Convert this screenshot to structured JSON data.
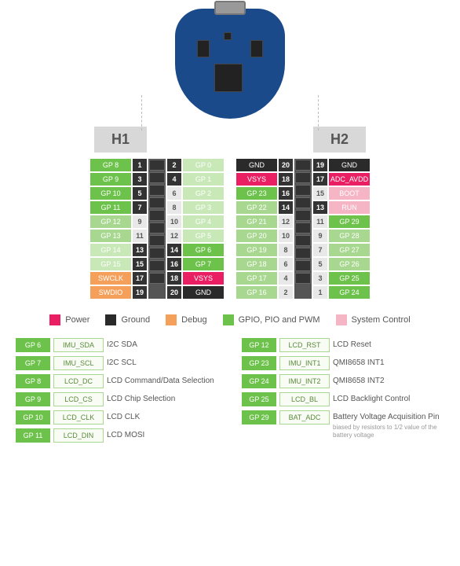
{
  "colors": {
    "gpio": "#6cc24a",
    "gpio_light": "#a8d890",
    "gpio_lighter": "#c8e8b8",
    "power": "#e91e63",
    "ground": "#2a2a2a",
    "debug": "#f5a05a",
    "system": "#f5b5c5",
    "num_bg": "#e8e8e8",
    "num_dark": "#333333"
  },
  "headers": {
    "h1": "H1",
    "h2": "H2"
  },
  "h1_left": [
    {
      "label": "GP 8",
      "color": "#6cc24a",
      "num": "1",
      "dark": true
    },
    {
      "label": "GP 9",
      "color": "#6cc24a",
      "num": "3",
      "dark": true
    },
    {
      "label": "GP 10",
      "color": "#6cc24a",
      "num": "5",
      "dark": true
    },
    {
      "label": "GP 11",
      "color": "#6cc24a",
      "num": "7",
      "dark": true
    },
    {
      "label": "GP 12",
      "color": "#a8d890",
      "num": "9",
      "dark": false
    },
    {
      "label": "GP 13",
      "color": "#a8d890",
      "num": "11",
      "dark": false
    },
    {
      "label": "GP 14",
      "color": "#c8e8b8",
      "num": "13",
      "dark": true
    },
    {
      "label": "GP 15",
      "color": "#c8e8b8",
      "num": "15",
      "dark": true
    },
    {
      "label": "SWCLK",
      "color": "#f5a05a",
      "num": "17",
      "dark": true
    },
    {
      "label": "SWDIO",
      "color": "#f5a05a",
      "num": "19",
      "dark": true
    }
  ],
  "h1_right": [
    {
      "label": "GP 0",
      "color": "#c8e8b8",
      "num": "2",
      "dark": true
    },
    {
      "label": "GP 1",
      "color": "#c8e8b8",
      "num": "4",
      "dark": true
    },
    {
      "label": "GP 2",
      "color": "#c8e8b8",
      "num": "6",
      "dark": false
    },
    {
      "label": "GP 3",
      "color": "#c8e8b8",
      "num": "8",
      "dark": false
    },
    {
      "label": "GP 4",
      "color": "#c8e8b8",
      "num": "10",
      "dark": false
    },
    {
      "label": "GP 5",
      "color": "#c8e8b8",
      "num": "12",
      "dark": false
    },
    {
      "label": "GP 6",
      "color": "#6cc24a",
      "num": "14",
      "dark": true
    },
    {
      "label": "GP 7",
      "color": "#6cc24a",
      "num": "16",
      "dark": true
    },
    {
      "label": "VSYS",
      "color": "#e91e63",
      "num": "18",
      "dark": true
    },
    {
      "label": "GND",
      "color": "#2a2a2a",
      "num": "20",
      "dark": true
    }
  ],
  "h2_left": [
    {
      "label": "GND",
      "color": "#2a2a2a",
      "num": "20",
      "dark": true
    },
    {
      "label": "VSYS",
      "color": "#e91e63",
      "num": "18",
      "dark": true
    },
    {
      "label": "GP 23",
      "color": "#6cc24a",
      "num": "16",
      "dark": true
    },
    {
      "label": "GP 22",
      "color": "#a8d890",
      "num": "14",
      "dark": true
    },
    {
      "label": "GP 21",
      "color": "#a8d890",
      "num": "12",
      "dark": false
    },
    {
      "label": "GP 20",
      "color": "#a8d890",
      "num": "10",
      "dark": false
    },
    {
      "label": "GP 19",
      "color": "#a8d890",
      "num": "8",
      "dark": false
    },
    {
      "label": "GP 18",
      "color": "#a8d890",
      "num": "6",
      "dark": false
    },
    {
      "label": "GP 17",
      "color": "#a8d890",
      "num": "4",
      "dark": false
    },
    {
      "label": "GP 16",
      "color": "#a8d890",
      "num": "2",
      "dark": false
    }
  ],
  "h2_right": [
    {
      "label": "GND",
      "color": "#2a2a2a",
      "num": "19",
      "dark": true
    },
    {
      "label": "ADC_AVDD",
      "color": "#e91e63",
      "num": "17",
      "dark": true
    },
    {
      "label": "BOOT",
      "color": "#f5b5c5",
      "num": "15",
      "dark": false
    },
    {
      "label": "RUN",
      "color": "#f5b5c5",
      "num": "13",
      "dark": true
    },
    {
      "label": "GP 29",
      "color": "#6cc24a",
      "num": "11",
      "dark": false
    },
    {
      "label": "GP 28",
      "color": "#a8d890",
      "num": "9",
      "dark": false
    },
    {
      "label": "GP 27",
      "color": "#a8d890",
      "num": "7",
      "dark": false
    },
    {
      "label": "GP 26",
      "color": "#a8d890",
      "num": "5",
      "dark": false
    },
    {
      "label": "GP 25",
      "color": "#6cc24a",
      "num": "3",
      "dark": false
    },
    {
      "label": "GP 24",
      "color": "#6cc24a",
      "num": "1",
      "dark": false
    }
  ],
  "legend": [
    {
      "label": "Power",
      "color": "#e91e63"
    },
    {
      "label": "Ground",
      "color": "#2a2a2a"
    },
    {
      "label": "Debug",
      "color": "#f5a05a"
    },
    {
      "label": "GPIO, PIO and PWM",
      "color": "#6cc24a"
    },
    {
      "label": "System Control",
      "color": "#f5b5c5"
    }
  ],
  "func_left": [
    {
      "pin": "GP 6",
      "name": "IMU_SDA",
      "desc": "I2C SDA"
    },
    {
      "pin": "GP 7",
      "name": "IMU_SCL",
      "desc": "I2C SCL"
    },
    {
      "pin": "GP 8",
      "name": "LCD_DC",
      "desc": "LCD Command/Data Selection"
    },
    {
      "pin": "GP 9",
      "name": "LCD_CS",
      "desc": "LCD Chip Selection"
    },
    {
      "pin": "GP 10",
      "name": "LCD_CLK",
      "desc": "LCD CLK"
    },
    {
      "pin": "GP 11",
      "name": "LCD_DIN",
      "desc": "LCD MOSI"
    }
  ],
  "func_right": [
    {
      "pin": "GP 12",
      "name": "LCD_RST",
      "desc": "LCD Reset"
    },
    {
      "pin": "GP 23",
      "name": "IMU_INT1",
      "desc": "QMI8658 INT1"
    },
    {
      "pin": "GP 24",
      "name": "IMU_INT2",
      "desc": "QMI8658 INT2"
    },
    {
      "pin": "GP 25",
      "name": "LCD_BL",
      "desc": "LCD Backlight Control"
    },
    {
      "pin": "GP 29",
      "name": "BAT_ADC",
      "desc": "Battery Voltage Acquisition Pin",
      "note": "biased by resistors to 1/2 value of the battery voltage"
    }
  ]
}
